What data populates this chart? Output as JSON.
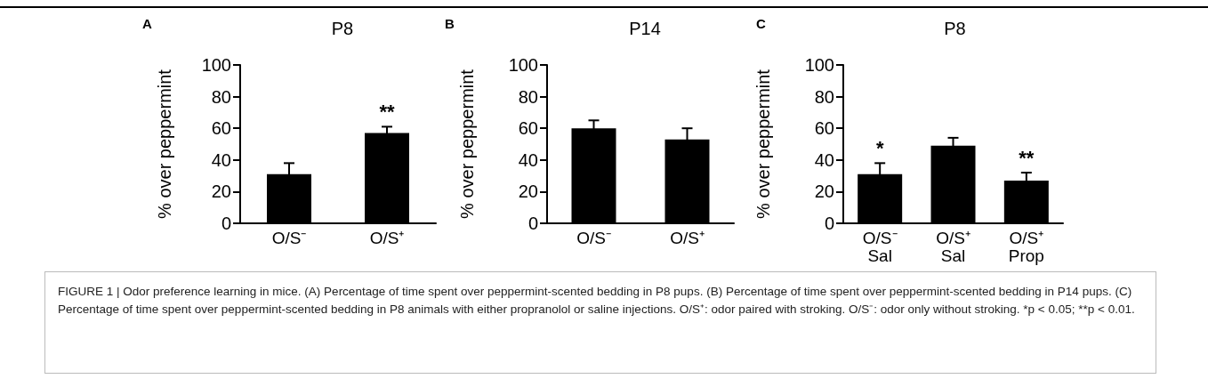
{
  "chart_data": [
    {
      "type": "bar",
      "title": "P8",
      "ylabel": "% over peppermint",
      "categories": [
        "O/S⁻",
        "O/S⁺"
      ],
      "values": [
        31,
        57
      ],
      "errors": [
        7,
        4
      ],
      "color": "#000000",
      "ylim": [
        0,
        100
      ],
      "yticks": [
        0,
        20,
        40,
        60,
        80,
        100
      ],
      "value_labels": [
        null,
        "**"
      ],
      "annotations": [
        "A"
      ]
    },
    {
      "type": "bar",
      "title": "P14",
      "ylabel": "% over peppermint",
      "categories": [
        "O/S⁻",
        "O/S⁺"
      ],
      "values": [
        60,
        53
      ],
      "errors": [
        5,
        7
      ],
      "color": "#000000",
      "ylim": [
        0,
        100
      ],
      "yticks": [
        0,
        20,
        40,
        60,
        80,
        100
      ],
      "annotations": [
        "B"
      ]
    },
    {
      "type": "bar",
      "title": "P8",
      "ylabel": "% over peppermint",
      "categories": [
        "O/S⁻\nSal",
        "O/S⁺\nSal",
        "O/S⁺\nProp"
      ],
      "values": [
        31,
        49,
        27
      ],
      "errors": [
        7,
        5,
        5
      ],
      "color": "#000000",
      "ylim": [
        0,
        100
      ],
      "yticks": [
        0,
        20,
        40,
        60,
        80,
        100
      ],
      "value_labels": [
        "*",
        null,
        "**"
      ],
      "annotations": [
        "C"
      ]
    },
    {
      "type": "other",
      "annotations": [
        "FIGURE 1 | Odor preference learning in mice. (A) Percentage of time spent over peppermint-scented bedding in P8 pups. (B) Percentage of time spent over peppermint-scented bedding in P14 pups. (C) Percentage of time spent over peppermint-scented bedding in P8 animals with either propranolol or saline injections. O/S⁺: odor paired with stroking. O/S⁻: odor only without stroking. *p < 0.05; **p < 0.01."
      ]
    }
  ]
}
